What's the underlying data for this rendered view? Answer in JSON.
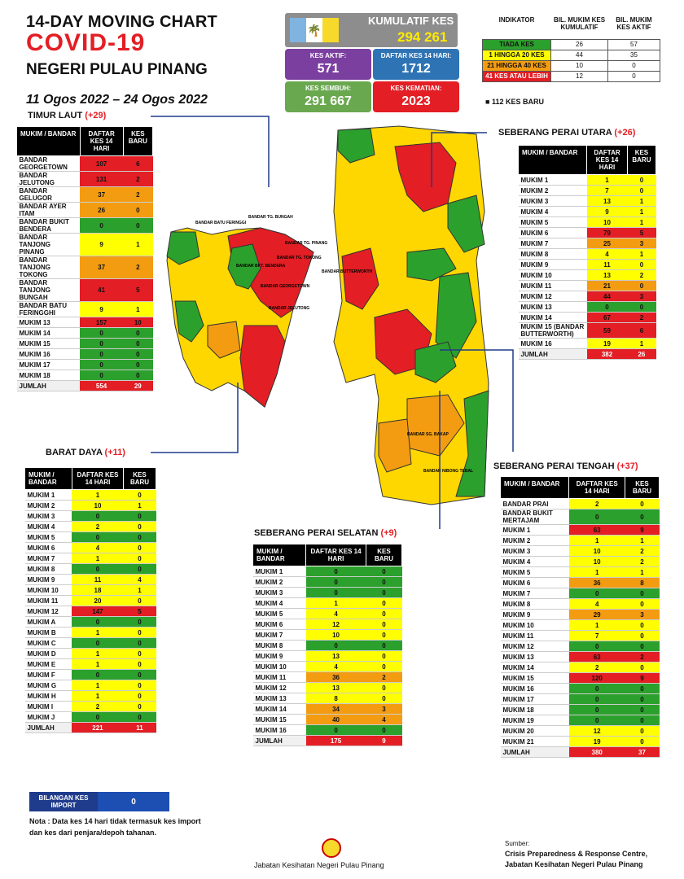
{
  "header": {
    "line1": "14-DAY MOVING CHART",
    "line2": "COVID-19",
    "line3": "NEGERI PULAU PINANG",
    "dates": "11 Ogos 2022 – 24 Ogos 2022"
  },
  "summary": {
    "kumulatif_label": "KUMULATIF KES",
    "kumulatif_value": "294 261",
    "aktif_label": "KES AKTIF:",
    "aktif_value": "571",
    "daftar_label": "DAFTAR KES 14 HARI:",
    "daftar_value": "1712",
    "sembuh_label": "KES SEMBUH:",
    "sembuh_value": "291 667",
    "kematian_label": "KES KEMATIAN:",
    "kematian_value": "2023",
    "colors": {
      "aktif": "#7b3fa0",
      "daftar": "#2e74b5",
      "sembuh": "#6aa84f",
      "kematian": "#e31e24",
      "flag_blue": "#7fb3e0",
      "flag_white": "#ffffff",
      "flag_yellow": "#f6d92b"
    }
  },
  "indicator": {
    "headers": [
      "INDIKATOR",
      "BIL. MUKIM KES KUMULATIF",
      "BIL. MUKIM KES AKTIF"
    ],
    "rows": [
      {
        "label": "TIADA KES",
        "kumulatif": "26",
        "aktif": "57",
        "color": "#2ca02c"
      },
      {
        "label": "1 HINGGA 20 KES",
        "kumulatif": "44",
        "aktif": "35",
        "color": "#ffff00"
      },
      {
        "label": "21 HINGGA 40 KES",
        "kumulatif": "10",
        "aktif": "0",
        "color": "#f39c12"
      },
      {
        "label": "41 KES ATAU LEBIH",
        "kumulatif": "12",
        "aktif": "0",
        "color": "#e31e24"
      }
    ],
    "baru": "112 KES BARU"
  },
  "map_labels": {
    "teluk_bahang": "BANDAR BATU FERINGGI",
    "tanjung_bungah": "BANDAR TG. BUNGAH",
    "tanjung_pinang": "BANDAR TG. PINANG",
    "tanjung_tokong": "BANDAR TG. TOKONG",
    "bukit_bendera": "BANDAR BKT. BENDERA",
    "georgetown": "BANDAR GEORGETOWN",
    "ayer_itam": "BANDAR AYER ITAM",
    "gelugor": "BANDAR GELUGOR",
    "jelutong": "BANDAR JELUTONG",
    "butterworth": "BANDAR BUTTERWORTH",
    "bukit_mertajam": "BANDAR BUKIT MERTAJAM",
    "prai": "BANDAR PRAI",
    "sg_bakap": "BANDAR SG. BAKAP",
    "nibong_tebal": "BANDAR NIBONG TEBAL"
  },
  "tables": {
    "timur_laut": {
      "title": "TIMUR LAUT",
      "new": "(+29)",
      "col1": "MUKIM / BANDAR",
      "col2": "DAFTAR KES 14 HARI",
      "col3": "KES BARU",
      "rows": [
        [
          "BANDAR GEORGETOWN",
          "107",
          "6"
        ],
        [
          "BANDAR JELUTONG",
          "131",
          "2"
        ],
        [
          "BANDAR GELUGOR",
          "37",
          "2"
        ],
        [
          "BANDAR AYER ITAM",
          "26",
          "0"
        ],
        [
          "BANDAR BUKIT BENDERA",
          "0",
          "0"
        ],
        [
          "BANDAR TANJONG PINANG",
          "9",
          "1"
        ],
        [
          "BANDAR TANJONG TOKONG",
          "37",
          "2"
        ],
        [
          "BANDAR TANJONG BUNGAH",
          "41",
          "5"
        ],
        [
          "BANDAR BATU FERINGGHI",
          "9",
          "1"
        ],
        [
          "MUKIM 13",
          "157",
          "10"
        ],
        [
          "MUKIM 14",
          "0",
          "0"
        ],
        [
          "MUKIM 15",
          "0",
          "0"
        ],
        [
          "MUKIM 16",
          "0",
          "0"
        ],
        [
          "MUKIM 17",
          "0",
          "0"
        ],
        [
          "MUKIM 18",
          "0",
          "0"
        ]
      ],
      "total_label": "JUMLAH",
      "total_daftar": "554",
      "total_baru": "29"
    },
    "barat_daya": {
      "title": "BARAT DAYA",
      "new": "(+11)",
      "col1": "MUKIM / BANDAR",
      "col2": "DAFTAR KES 14 HARI",
      "col3": "KES BARU",
      "rows": [
        [
          "MUKIM 1",
          "1",
          "0"
        ],
        [
          "MUKIM 2",
          "10",
          "1"
        ],
        [
          "MUKIM 3",
          "0",
          "0"
        ],
        [
          "MUKIM 4",
          "2",
          "0"
        ],
        [
          "MUKIM 5",
          "0",
          "0"
        ],
        [
          "MUKIM 6",
          "4",
          "0"
        ],
        [
          "MUKIM 7",
          "1",
          "0"
        ],
        [
          "MUKIM 8",
          "0",
          "0"
        ],
        [
          "MUKIM 9",
          "11",
          "4"
        ],
        [
          "MUKIM 10",
          "18",
          "1"
        ],
        [
          "MUKIM 11",
          "20",
          "0"
        ],
        [
          "MUKIM 12",
          "147",
          "5"
        ],
        [
          "MUKIM A",
          "0",
          "0"
        ],
        [
          "MUKIM B",
          "1",
          "0"
        ],
        [
          "MUKIM C",
          "0",
          "0"
        ],
        [
          "MUKIM D",
          "1",
          "0"
        ],
        [
          "MUKIM E",
          "1",
          "0"
        ],
        [
          "MUKIM F",
          "0",
          "0"
        ],
        [
          "MUKIM G",
          "1",
          "0"
        ],
        [
          "MUKIM H",
          "1",
          "0"
        ],
        [
          "MUKIM I",
          "2",
          "0"
        ],
        [
          "MUKIM J",
          "0",
          "0"
        ]
      ],
      "total_label": "JUMLAH",
      "total_daftar": "221",
      "total_baru": "11"
    },
    "spu": {
      "title": "SEBERANG PERAI UTARA",
      "new": "(+26)",
      "col1": "MUKIM / BANDAR",
      "col2": "DAFTAR KES 14 HARI",
      "col3": "KES BARU",
      "rows": [
        [
          "MUKIM 1",
          "1",
          "0"
        ],
        [
          "MUKIM 2",
          "7",
          "0"
        ],
        [
          "MUKIM 3",
          "13",
          "1"
        ],
        [
          "MUKIM 4",
          "9",
          "1"
        ],
        [
          "MUKIM 5",
          "10",
          "1"
        ],
        [
          "MUKIM 6",
          "79",
          "5"
        ],
        [
          "MUKIM 7",
          "25",
          "3"
        ],
        [
          "MUKIM 8",
          "4",
          "1"
        ],
        [
          "MUKIM 9",
          "11",
          "0"
        ],
        [
          "MUKIM 10",
          "13",
          "2"
        ],
        [
          "MUKIM 11",
          "21",
          "0"
        ],
        [
          "MUKIM 12",
          "44",
          "3"
        ],
        [
          "MUKIM 13",
          "0",
          "0"
        ],
        [
          "MUKIM 14",
          "67",
          "2"
        ],
        [
          "MUKIM 15 (BANDAR BUTTERWORTH)",
          "59",
          "6"
        ],
        [
          "MUKIM 16",
          "19",
          "1"
        ]
      ],
      "total_label": "JUMLAH",
      "total_daftar": "382",
      "total_baru": "26"
    },
    "sps": {
      "title": "SEBERANG PERAI SELATAN",
      "new": "(+9)",
      "col1": "MUKIM / BANDAR",
      "col2": "DAFTAR KES 14 HARI",
      "col3": "KES BARU",
      "rows": [
        [
          "MUKIM 1",
          "0",
          "0"
        ],
        [
          "MUKIM 2",
          "0",
          "0"
        ],
        [
          "MUKIM 3",
          "0",
          "0"
        ],
        [
          "MUKIM 4",
          "1",
          "0"
        ],
        [
          "MUKIM 5",
          "4",
          "0"
        ],
        [
          "MUKIM 6",
          "12",
          "0"
        ],
        [
          "MUKIM 7",
          "10",
          "0"
        ],
        [
          "MUKIM 8",
          "0",
          "0"
        ],
        [
          "MUKIM 9",
          "13",
          "0"
        ],
        [
          "MUKIM 10",
          "4",
          "0"
        ],
        [
          "MUKIM 11",
          "36",
          "2"
        ],
        [
          "MUKIM 12",
          "13",
          "0"
        ],
        [
          "MUKIM 13",
          "8",
          "0"
        ],
        [
          "MUKIM 14",
          "34",
          "3"
        ],
        [
          "MUKIM 15",
          "40",
          "4"
        ],
        [
          "MUKIM 16",
          "0",
          "0"
        ]
      ],
      "total_label": "JUMLAH",
      "total_daftar": "175",
      "total_baru": "9"
    },
    "spt": {
      "title": "SEBERANG PERAI TENGAH",
      "new": "(+37)",
      "col1": "MUKIM / BANDAR",
      "col2": "DAFTAR KES 14 HARI",
      "col3": "KES BARU",
      "rows": [
        [
          "BANDAR PRAI",
          "2",
          "0"
        ],
        [
          "BANDAR BUKIT MERTAJAM",
          "0",
          "0"
        ],
        [
          "MUKIM 1",
          "63",
          "9"
        ],
        [
          "MUKIM 2",
          "1",
          "1"
        ],
        [
          "MUKIM 3",
          "10",
          "2"
        ],
        [
          "MUKIM 4",
          "10",
          "2"
        ],
        [
          "MUKIM 5",
          "1",
          "1"
        ],
        [
          "MUKIM 6",
          "36",
          "8"
        ],
        [
          "MUKIM 7",
          "0",
          "0"
        ],
        [
          "MUKIM 8",
          "4",
          "0"
        ],
        [
          "MUKIM 9",
          "29",
          "3"
        ],
        [
          "MUKIM 10",
          "1",
          "0"
        ],
        [
          "MUKIM 11",
          "7",
          "0"
        ],
        [
          "MUKIM 12",
          "0",
          "0"
        ],
        [
          "MUKIM 13",
          "63",
          "2"
        ],
        [
          "MUKIM 14",
          "2",
          "0"
        ],
        [
          "MUKIM 15",
          "120",
          "9"
        ],
        [
          "MUKIM 16",
          "0",
          "0"
        ],
        [
          "MUKIM 17",
          "0",
          "0"
        ],
        [
          "MUKIM 18",
          "0",
          "0"
        ],
        [
          "MUKIM 19",
          "0",
          "0"
        ],
        [
          "MUKIM 20",
          "12",
          "0"
        ],
        [
          "MUKIM 21",
          "19",
          "0"
        ]
      ],
      "total_label": "JUMLAH",
      "total_daftar": "380",
      "total_baru": "37"
    }
  },
  "import": {
    "label": "BILANGAN KES IMPORT",
    "value": "0"
  },
  "note": "Nota : Data kes 14 hari tidak termasuk kes import dan kes dari penjara/depoh tahanan.",
  "source": {
    "label": "Sumber:",
    "line1": "Crisis Preparedness & Response Centre,",
    "line2": "Jabatan Kesihatan Negeri Pulau Pinang"
  },
  "footer": "Jabatan Kesihatan Negeri Pulau Pinang",
  "chart_data": {
    "type": "table",
    "title": "14-DAY MOVING CHART COVID-19 NEGERI PULAU PINANG",
    "legend": [
      "TIADA KES",
      "1 HINGGA 20 KES",
      "21 HINGGA 40 KES",
      "41 KES ATAU LEBIH"
    ],
    "series": [
      {
        "name": "TIMUR LAUT",
        "total_14day": 554,
        "new": 29
      },
      {
        "name": "BARAT DAYA",
        "total_14day": 221,
        "new": 11
      },
      {
        "name": "SEBERANG PERAI UTARA",
        "total_14day": 382,
        "new": 26
      },
      {
        "name": "SEBERANG PERAI TENGAH",
        "total_14day": 380,
        "new": 37
      },
      {
        "name": "SEBERANG PERAI SELATAN",
        "total_14day": 175,
        "new": 9
      }
    ]
  }
}
